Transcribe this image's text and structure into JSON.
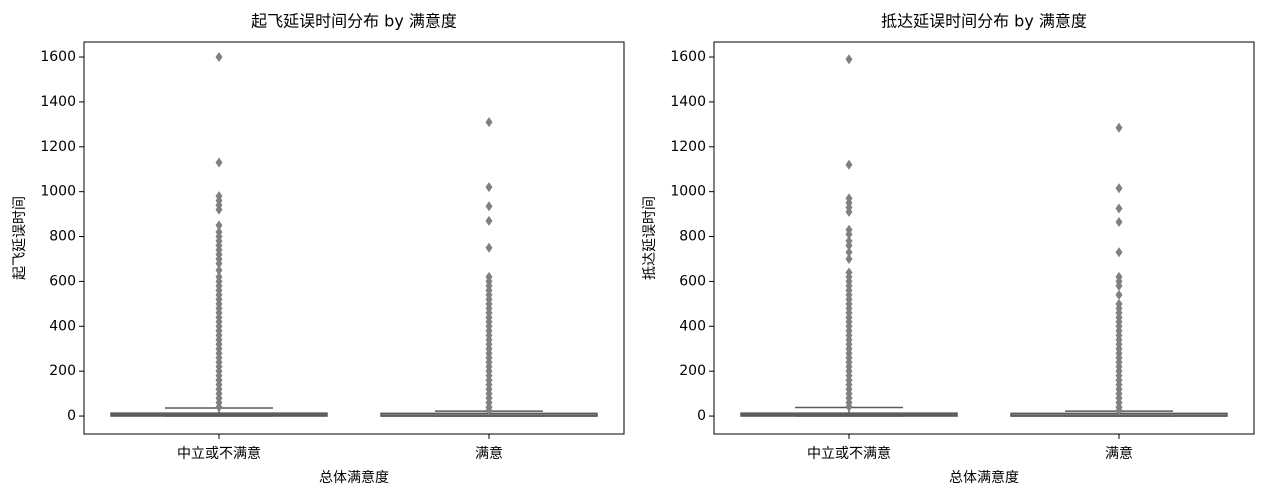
{
  "chart_data": [
    {
      "type": "box",
      "title": "起飞延误时间分布 by 满意度",
      "xlabel": "总体满意度",
      "ylabel": "起飞延误时间",
      "categories": [
        "中立或不满意",
        "满意"
      ],
      "color": "#808080",
      "ylim": [
        -80,
        1667
      ],
      "yticks": [
        0,
        200,
        400,
        600,
        800,
        1000,
        1200,
        1400,
        1600
      ],
      "boxes": [
        {
          "min": 0,
          "q1": 0,
          "median": 5,
          "q3": 13,
          "max": 36,
          "outliers": [
            40,
            60,
            80,
            100,
            120,
            140,
            160,
            180,
            200,
            220,
            240,
            260,
            280,
            300,
            320,
            340,
            360,
            380,
            400,
            420,
            440,
            460,
            480,
            500,
            520,
            540,
            560,
            580,
            600,
            620,
            650,
            680,
            700,
            720,
            740,
            760,
            780,
            800,
            820,
            850,
            920,
            940,
            960,
            980,
            1130,
            1600
          ]
        },
        {
          "min": 0,
          "q1": 0,
          "median": 0,
          "q3": 12,
          "max": 22,
          "outliers": [
            25,
            40,
            60,
            80,
            100,
            120,
            140,
            160,
            180,
            200,
            220,
            240,
            260,
            280,
            300,
            320,
            340,
            360,
            380,
            400,
            420,
            440,
            460,
            480,
            500,
            520,
            540,
            560,
            580,
            600,
            620,
            750,
            870,
            935,
            1020,
            1310
          ]
        }
      ]
    },
    {
      "type": "box",
      "title": "抵达延误时间分布 by 满意度",
      "xlabel": "总体满意度",
      "ylabel": "抵达延误时间",
      "categories": [
        "中立或不满意",
        "满意"
      ],
      "color": "#808080",
      "ylim": [
        -80,
        1667
      ],
      "yticks": [
        0,
        200,
        400,
        600,
        800,
        1000,
        1200,
        1400,
        1600
      ],
      "boxes": [
        {
          "min": 0,
          "q1": 0,
          "median": 5,
          "q3": 13,
          "max": 38,
          "outliers": [
            42,
            60,
            80,
            100,
            120,
            140,
            160,
            180,
            200,
            220,
            240,
            260,
            280,
            300,
            320,
            340,
            360,
            380,
            400,
            420,
            440,
            460,
            480,
            500,
            520,
            540,
            560,
            580,
            600,
            620,
            640,
            700,
            730,
            760,
            780,
            810,
            830,
            910,
            930,
            950,
            970,
            1120,
            1590
          ]
        },
        {
          "min": 0,
          "q1": 0,
          "median": 0,
          "q3": 12,
          "max": 22,
          "outliers": [
            25,
            40,
            60,
            80,
            100,
            120,
            140,
            160,
            180,
            200,
            220,
            240,
            260,
            280,
            300,
            320,
            340,
            360,
            380,
            400,
            420,
            440,
            460,
            480,
            500,
            540,
            580,
            600,
            620,
            730,
            865,
            925,
            1015,
            1285
          ]
        }
      ]
    }
  ]
}
